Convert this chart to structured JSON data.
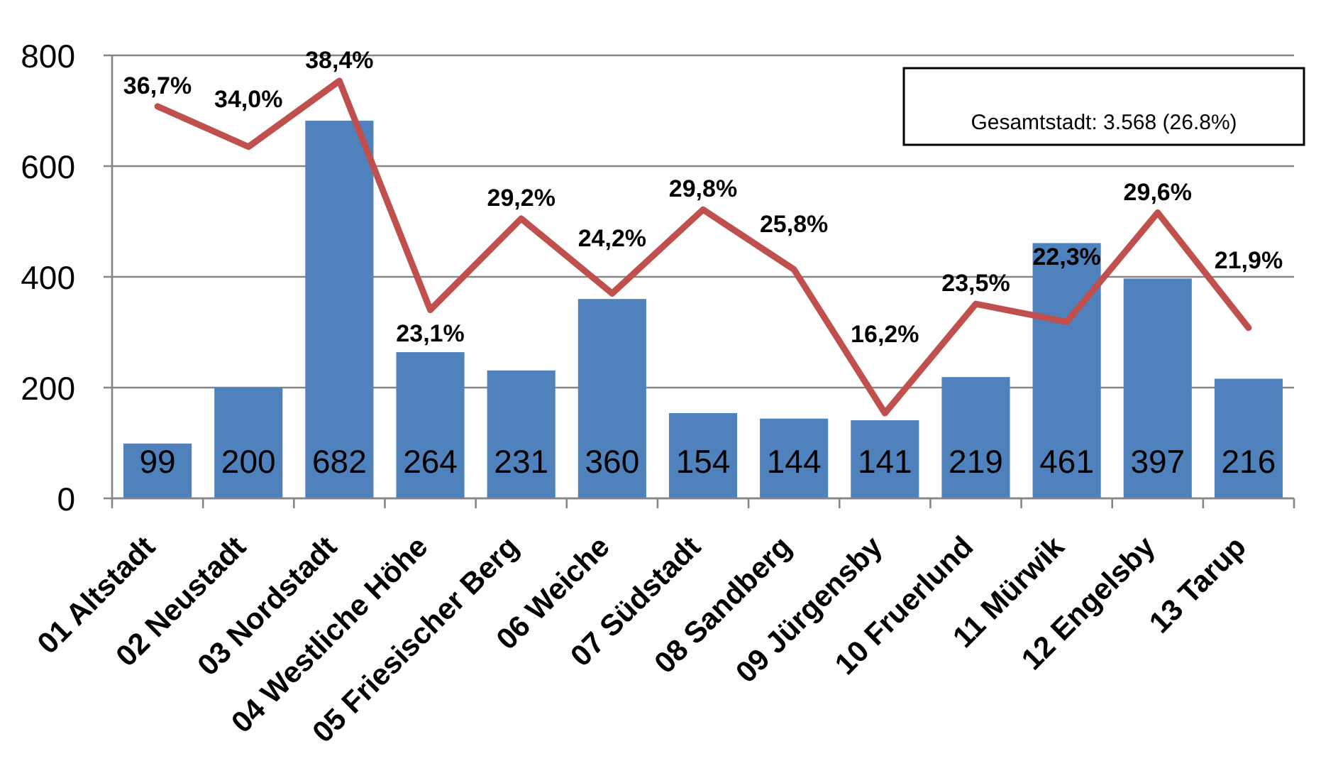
{
  "chart_data": {
    "type": "bar",
    "categories": [
      "01 Altstadt",
      "02 Neustadt",
      "03 Nordstadt",
      "04 Westliche Höhe",
      "05 Friesischer Berg",
      "06 Weiche",
      "07 Südstadt",
      "08 Sandberg",
      "09 Jürgensby",
      "10 Fruerlund",
      "11 Mürwik",
      "12 Engelsby",
      "13 Tarup"
    ],
    "series": [
      {
        "color": "#4f81bd",
        "values": [
          99,
          200,
          682,
          264,
          231,
          360,
          154,
          144,
          141,
          219,
          461,
          397,
          216
        ],
        "value_labels": [
          "99",
          "200",
          "682",
          "264",
          "231",
          "360",
          "154",
          "144",
          "141",
          "219",
          "461",
          "397",
          "216"
        ]
      },
      {
        "type": "line",
        "axis": "y2",
        "color": "#c0504d",
        "values": [
          36.7,
          34.0,
          38.4,
          23.1,
          29.2,
          24.2,
          29.8,
          25.8,
          16.2,
          23.5,
          22.3,
          29.6,
          21.9
        ],
        "value_labels": [
          "36,7%",
          "34,0%",
          "38,4%",
          "23,1%",
          "29,2%",
          "24,2%",
          "29,8%",
          "25,8%",
          "16,2%",
          "23,5%",
          "22,3%",
          "29,6%",
          "21,9%"
        ]
      }
    ],
    "ylim": [
      0,
      800
    ],
    "yticks": [
      0,
      200,
      400,
      600,
      800
    ],
    "grid": "y",
    "annotations": [
      "Gesamtstadt: 3.568 (26.8%)"
    ]
  }
}
